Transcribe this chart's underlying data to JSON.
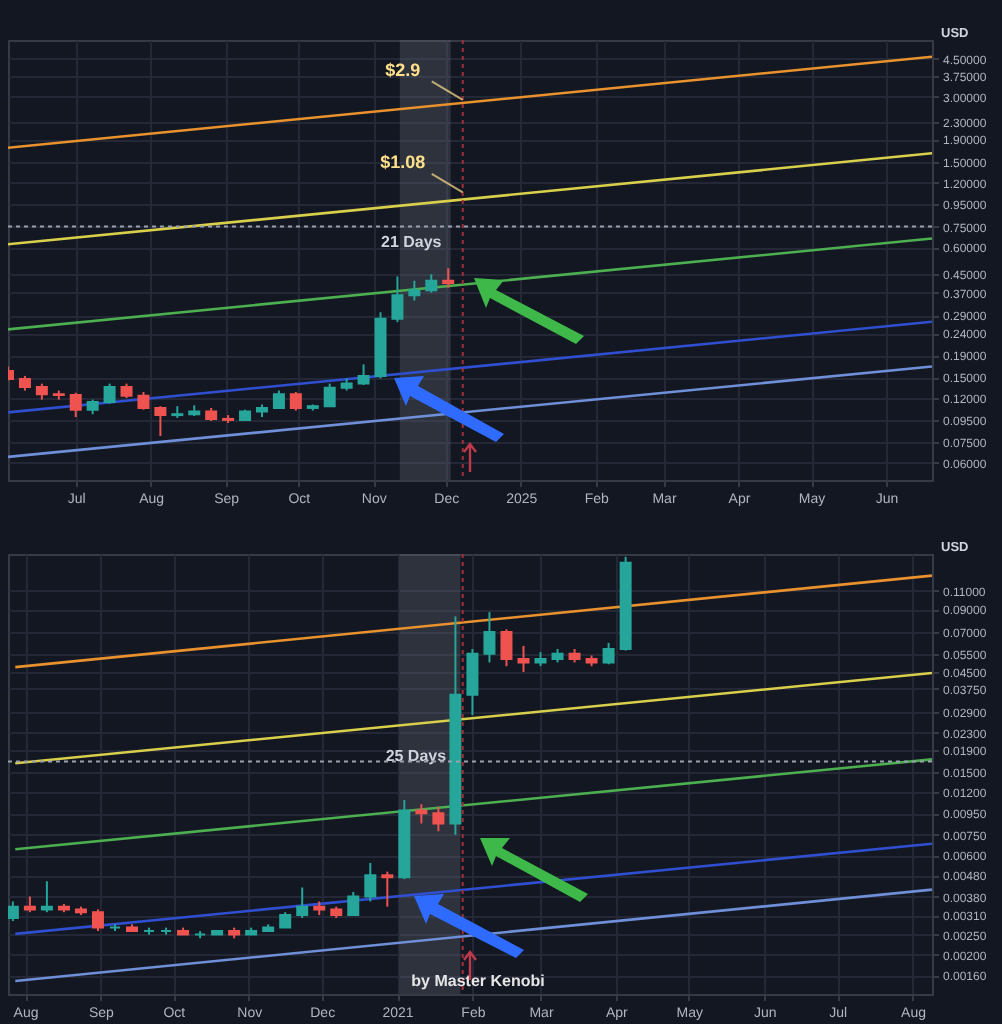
{
  "chart_data": [
    {
      "type": "candlestick",
      "ylabel": "USD",
      "log": true,
      "grid": true,
      "x": [
        "2024-06-03",
        "2024-06-10",
        "2024-06-17",
        "2024-06-24",
        "2024-07-01",
        "2024-07-08",
        "2024-07-15",
        "2024-07-22",
        "2024-07-29",
        "2024-08-05",
        "2024-08-12",
        "2024-08-19",
        "2024-08-26",
        "2024-09-02",
        "2024-09-09",
        "2024-09-16",
        "2024-09-23",
        "2024-09-30",
        "2024-10-07",
        "2024-10-14",
        "2024-10-21",
        "2024-10-28",
        "2024-11-04",
        "2024-11-11",
        "2024-11-18",
        "2024-11-25",
        "2024-12-02"
      ],
      "ohlc": [
        [
          0.16,
          0.168,
          0.145,
          0.147
        ],
        [
          0.147,
          0.152,
          0.13,
          0.135
        ],
        [
          0.135,
          0.14,
          0.118,
          0.125
        ],
        [
          0.125,
          0.13,
          0.118,
          0.124
        ],
        [
          0.124,
          0.127,
          0.098,
          0.106
        ],
        [
          0.106,
          0.118,
          0.101,
          0.115
        ],
        [
          0.115,
          0.14,
          0.113,
          0.135
        ],
        [
          0.135,
          0.14,
          0.12,
          0.123
        ],
        [
          0.123,
          0.128,
          0.106,
          0.108
        ],
        [
          0.108,
          0.11,
          0.08,
          0.1
        ],
        [
          0.1,
          0.11,
          0.097,
          0.101
        ],
        [
          0.101,
          0.111,
          0.099,
          0.104
        ],
        [
          0.104,
          0.108,
          0.094,
          0.096
        ],
        [
          0.096,
          0.1,
          0.092,
          0.095
        ],
        [
          0.095,
          0.106,
          0.094,
          0.104
        ],
        [
          0.104,
          0.112,
          0.098,
          0.108
        ],
        [
          0.108,
          0.13,
          0.107,
          0.125
        ],
        [
          0.125,
          0.128,
          0.105,
          0.108
        ],
        [
          0.108,
          0.112,
          0.105,
          0.11
        ],
        [
          0.11,
          0.14,
          0.109,
          0.134
        ],
        [
          0.134,
          0.148,
          0.13,
          0.14
        ],
        [
          0.14,
          0.172,
          0.138,
          0.152
        ],
        [
          0.152,
          0.3,
          0.148,
          0.28
        ],
        [
          0.28,
          0.44,
          0.27,
          0.36
        ],
        [
          0.36,
          0.42,
          0.34,
          0.38
        ],
        [
          0.38,
          0.45,
          0.37,
          0.42
        ],
        [
          0.42,
          0.48,
          0.39,
          0.41
        ]
      ],
      "series": [
        {
          "type": "line",
          "color": "#e8912d",
          "x": [
            "2024-06-03",
            "2025-06-20"
          ],
          "values": [
            1.74,
            4.6
          ]
        },
        {
          "type": "line",
          "color": "#d8cf4a",
          "x": [
            "2024-06-03",
            "2025-06-20"
          ],
          "values": [
            0.62,
            1.64
          ]
        },
        {
          "type": "line",
          "color": "#4caf50",
          "x": [
            "2024-06-03",
            "2025-06-20"
          ],
          "values": [
            0.25,
            0.66
          ]
        },
        {
          "type": "line",
          "color": "#2f4fd0",
          "x": [
            "2024-06-03",
            "2025-06-20"
          ],
          "values": [
            0.103,
            0.271
          ]
        },
        {
          "type": "line",
          "color": "#6f8fd8",
          "x": [
            "2024-06-03",
            "2025-06-20"
          ],
          "values": [
            0.064,
            0.168
          ]
        }
      ],
      "xlim": [
        "2024-06-03",
        "2025-06-20"
      ],
      "xticks": [
        {
          "value": "2024-07-01",
          "label": "Jul"
        },
        {
          "value": "2024-08-01",
          "label": "Aug"
        },
        {
          "value": "2024-09-01",
          "label": "Sep"
        },
        {
          "value": "2024-10-01",
          "label": "Oct"
        },
        {
          "value": "2024-11-01",
          "label": "Nov"
        },
        {
          "value": "2024-12-01",
          "label": "Dec"
        },
        {
          "value": "2025-01-01",
          "label": "2025"
        },
        {
          "value": "2025-02-01",
          "label": "Feb"
        },
        {
          "value": "2025-03-01",
          "label": "Mar"
        },
        {
          "value": "2025-04-01",
          "label": "Apr"
        },
        {
          "value": "2025-05-01",
          "label": "May"
        },
        {
          "value": "2025-06-01",
          "label": "Jun"
        }
      ],
      "ylim": [
        0.05,
        5.5
      ],
      "yticks": [
        {
          "value": 4.5,
          "label": "4.50000"
        },
        {
          "value": 3.75,
          "label": "3.75000"
        },
        {
          "value": 3,
          "label": "3.00000"
        },
        {
          "value": 2.3,
          "label": "2.30000"
        },
        {
          "value": 1.9,
          "label": "1.90000"
        },
        {
          "value": 1.5,
          "label": "1.50000"
        },
        {
          "value": 1.2,
          "label": "1.20000"
        },
        {
          "value": 0.95,
          "label": "0.95000"
        },
        {
          "value": 0.75,
          "label": "0.75000"
        },
        {
          "value": 0.6,
          "label": "0.60000"
        },
        {
          "value": 0.45,
          "label": "0.45000"
        },
        {
          "value": 0.37,
          "label": "0.37000"
        },
        {
          "value": 0.29,
          "label": "0.29000"
        },
        {
          "value": 0.24,
          "label": "0.24000"
        },
        {
          "value": 0.19,
          "label": "0.19000"
        },
        {
          "value": 0.15,
          "label": "0.15000"
        },
        {
          "value": 0.12,
          "label": "0.12000"
        },
        {
          "value": 0.095,
          "label": "0.09500"
        },
        {
          "value": 0.075,
          "label": "0.07500"
        },
        {
          "value": 0.06,
          "label": "0.06000"
        }
      ],
      "ref_lines": [
        {
          "axis": "y",
          "value": 0.75,
          "color": "#9aa0ad",
          "line_style": "dotted"
        },
        {
          "axis": "x",
          "value": "2024-12-08",
          "color": "#a0303a",
          "line_style": "dotted"
        }
      ],
      "bands": [
        {
          "axis": "x",
          "from": "2024-11-12",
          "to": "2024-12-03",
          "label": "21 Days",
          "color": "#6a6f7d"
        }
      ],
      "annotations": [
        {
          "text": "$2.9",
          "x": "2024-12-08",
          "y": 2.9
        },
        {
          "text": "$1.08",
          "x": "2024-12-08",
          "y": 1.08
        }
      ]
    },
    {
      "type": "candlestick",
      "ylabel": "USD",
      "log": true,
      "grid": true,
      "x": [
        "2020-07-27",
        "2020-08-03",
        "2020-08-10",
        "2020-08-17",
        "2020-08-24",
        "2020-08-31",
        "2020-09-07",
        "2020-09-14",
        "2020-09-21",
        "2020-09-28",
        "2020-10-05",
        "2020-10-12",
        "2020-10-19",
        "2020-10-26",
        "2020-11-02",
        "2020-11-09",
        "2020-11-16",
        "2020-11-23",
        "2020-11-30",
        "2020-12-07",
        "2020-12-14",
        "2020-12-21",
        "2020-12-28",
        "2021-01-04",
        "2021-01-11",
        "2021-01-18",
        "2021-01-25",
        "2021-02-01",
        "2021-02-08",
        "2021-02-15",
        "2021-02-22",
        "2021-03-01",
        "2021-03-08",
        "2021-03-15",
        "2021-03-22",
        "2021-03-29",
        "2021-04-05"
      ],
      "ohlc": [
        [
          0.003,
          0.0036,
          0.0029,
          0.0034
        ],
        [
          0.0034,
          0.0038,
          0.0032,
          0.0033
        ],
        [
          0.0033,
          0.0045,
          0.0032,
          0.0034
        ],
        [
          0.0034,
          0.0035,
          0.0032,
          0.0033
        ],
        [
          0.0033,
          0.0034,
          0.0031,
          0.0032
        ],
        [
          0.0032,
          0.0033,
          0.0026,
          0.0027
        ],
        [
          0.0027,
          0.0028,
          0.0026,
          0.0027
        ],
        [
          0.0027,
          0.0028,
          0.0026,
          0.0026
        ],
        [
          0.0026,
          0.0027,
          0.0025,
          0.0026
        ],
        [
          0.0026,
          0.0027,
          0.0025,
          0.0026
        ],
        [
          0.0026,
          0.0027,
          0.0025,
          0.0025
        ],
        [
          0.0025,
          0.0026,
          0.0024,
          0.0025
        ],
        [
          0.0025,
          0.0026,
          0.0025,
          0.0026
        ],
        [
          0.0026,
          0.0027,
          0.0024,
          0.0025
        ],
        [
          0.0025,
          0.0027,
          0.0025,
          0.0026
        ],
        [
          0.0026,
          0.0028,
          0.0026,
          0.0027
        ],
        [
          0.0027,
          0.0032,
          0.0027,
          0.0031
        ],
        [
          0.0031,
          0.0042,
          0.003,
          0.0034
        ],
        [
          0.0034,
          0.0036,
          0.0031,
          0.0033
        ],
        [
          0.0033,
          0.0034,
          0.003,
          0.0031
        ],
        [
          0.0031,
          0.004,
          0.0031,
          0.0038
        ],
        [
          0.0038,
          0.0055,
          0.0036,
          0.0048
        ],
        [
          0.0048,
          0.005,
          0.0034,
          0.0047
        ],
        [
          0.0047,
          0.011,
          0.0046,
          0.0098
        ],
        [
          0.0098,
          0.0105,
          0.0085,
          0.0095
        ],
        [
          0.0095,
          0.0102,
          0.0078,
          0.0085
        ],
        [
          0.0085,
          0.083,
          0.0075,
          0.035
        ],
        [
          0.035,
          0.058,
          0.028,
          0.055
        ],
        [
          0.055,
          0.087,
          0.05,
          0.07
        ],
        [
          0.07,
          0.072,
          0.048,
          0.052
        ],
        [
          0.052,
          0.06,
          0.045,
          0.05
        ],
        [
          0.05,
          0.056,
          0.048,
          0.052
        ],
        [
          0.052,
          0.058,
          0.05,
          0.055
        ],
        [
          0.055,
          0.058,
          0.05,
          0.052
        ],
        [
          0.052,
          0.054,
          0.048,
          0.05
        ],
        [
          0.05,
          0.062,
          0.049,
          0.058
        ],
        [
          0.058,
          0.16,
          0.057,
          0.15
        ]
      ],
      "series": [
        {
          "type": "line",
          "color": "#e8912d",
          "x": [
            "2020-07-28",
            "2021-08-09"
          ],
          "values": [
            0.0475,
            0.13
          ]
        },
        {
          "type": "line",
          "color": "#d8cf4a",
          "x": [
            "2020-07-28",
            "2021-08-09"
          ],
          "values": [
            0.0165,
            0.0445
          ]
        },
        {
          "type": "line",
          "color": "#4caf50",
          "x": [
            "2020-07-28",
            "2021-08-09"
          ],
          "values": [
            0.0064,
            0.0172
          ]
        },
        {
          "type": "line",
          "color": "#2f4fd0",
          "x": [
            "2020-07-28",
            "2021-08-09"
          ],
          "values": [
            0.00252,
            0.0068
          ]
        },
        {
          "type": "line",
          "color": "#6f8fd8",
          "x": [
            "2020-07-28",
            "2021-08-09"
          ],
          "values": [
            0.0015,
            0.0041
          ]
        }
      ],
      "xlim": [
        "2020-07-25",
        "2021-08-09"
      ],
      "xticks": [
        {
          "value": "2020-08-01",
          "label": "Aug"
        },
        {
          "value": "2020-09-01",
          "label": "Sep"
        },
        {
          "value": "2020-10-01",
          "label": "Oct"
        },
        {
          "value": "2020-11-01",
          "label": "Nov"
        },
        {
          "value": "2020-12-01",
          "label": "Dec"
        },
        {
          "value": "2021-01-01",
          "label": "2021"
        },
        {
          "value": "2021-02-01",
          "label": "Feb"
        },
        {
          "value": "2021-03-01",
          "label": "Mar"
        },
        {
          "value": "2021-04-01",
          "label": "Apr"
        },
        {
          "value": "2021-05-01",
          "label": "May"
        },
        {
          "value": "2021-06-01",
          "label": "Jun"
        },
        {
          "value": "2021-07-01",
          "label": "Jul"
        },
        {
          "value": "2021-08-01",
          "label": "Aug"
        }
      ],
      "ylim": [
        0.0013,
        0.165
      ],
      "yticks": [
        {
          "value": 0.11,
          "label": "0.11000"
        },
        {
          "value": 0.09,
          "label": "0.09000"
        },
        {
          "value": 0.07,
          "label": "0.07000"
        },
        {
          "value": 0.055,
          "label": "0.05500"
        },
        {
          "value": 0.045,
          "label": "0.04500"
        },
        {
          "value": 0.0375,
          "label": "0.03750"
        },
        {
          "value": 0.029,
          "label": "0.02900"
        },
        {
          "value": 0.023,
          "label": "0.02300"
        },
        {
          "value": 0.019,
          "label": "0.01900"
        },
        {
          "value": 0.015,
          "label": "0.01500"
        },
        {
          "value": 0.012,
          "label": "0.01200"
        },
        {
          "value": 0.0095,
          "label": "0.00950"
        },
        {
          "value": 0.0075,
          "label": "0.00750"
        },
        {
          "value": 0.006,
          "label": "0.00600"
        },
        {
          "value": 0.0048,
          "label": "0.00480"
        },
        {
          "value": 0.0038,
          "label": "0.00380"
        },
        {
          "value": 0.0031,
          "label": "0.00310"
        },
        {
          "value": 0.0025,
          "label": "0.00250"
        },
        {
          "value": 0.002,
          "label": "0.00200"
        },
        {
          "value": 0.0016,
          "label": "0.00160"
        }
      ],
      "ref_lines": [
        {
          "axis": "y",
          "value": 0.0168,
          "color": "#9aa0ad",
          "line_style": "dotted"
        },
        {
          "axis": "x",
          "value": "2021-01-28",
          "color": "#a0303a",
          "line_style": "dotted"
        }
      ],
      "bands": [
        {
          "axis": "x",
          "from": "2021-01-02",
          "to": "2021-01-27",
          "label": "25 Days",
          "color": "#6a6f7d"
        }
      ],
      "annotations": [
        "by Master Kenobi"
      ]
    }
  ]
}
